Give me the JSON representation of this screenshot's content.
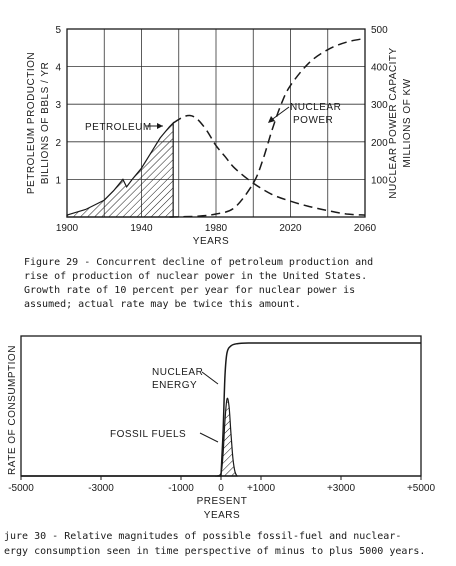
{
  "chart_data": [
    {
      "type": "area",
      "x_label": "YEARS",
      "y_label_left": [
        "PETROLEUM PRODUCTION",
        "BILLIONS OF BBLS / YR"
      ],
      "y_label_right": [
        "NUCLEAR POWER CAPACITY",
        "MILLIONS OF KW"
      ],
      "x_ticks": [
        "1900",
        "1940",
        "1980",
        "2020",
        "2060"
      ],
      "y_left_ticks": [
        "1",
        "2",
        "3",
        "4",
        "5"
      ],
      "y_right_ticks": [
        "100",
        "200",
        "300",
        "400",
        "500"
      ],
      "xlim": [
        1900,
        2060
      ],
      "ylim_left": [
        0,
        5
      ],
      "ylim_right": [
        0,
        500
      ],
      "grid": true,
      "series": [
        {
          "name": "PETROLEUM",
          "style": "hatched-area-then-dashed",
          "x": [
            1900,
            1910,
            1920,
            1925,
            1930,
            1932,
            1935,
            1940,
            1945,
            1950,
            1955,
            1957,
            1962,
            1966,
            1970,
            1975,
            1980,
            1985,
            1990,
            2000,
            2010,
            2020,
            2030,
            2040,
            2050,
            2060
          ],
          "y": [
            0.05,
            0.2,
            0.45,
            0.7,
            1.0,
            0.8,
            1.0,
            1.3,
            1.7,
            2.1,
            2.4,
            2.5,
            2.65,
            2.7,
            2.6,
            2.3,
            1.9,
            1.6,
            1.3,
            0.9,
            0.6,
            0.42,
            0.28,
            0.17,
            0.08,
            0.05
          ]
        },
        {
          "name": "NUCLEAR POWER",
          "style": "dashed",
          "x": [
            1955,
            1970,
            1980,
            1990,
            2000,
            2005,
            2010,
            2015,
            2020,
            2030,
            2040,
            2050,
            2060
          ],
          "y": [
            0,
            2,
            8,
            25,
            90,
            150,
            230,
            300,
            350,
            410,
            445,
            465,
            475
          ]
        }
      ],
      "annotations": [
        "PETROLEUM",
        "NUCLEAR",
        "POWER"
      ],
      "caption": [
        "Figure 29 - Concurrent decline of petroleum production and",
        "rise of production of nuclear power in the United States.",
        "Growth rate of 10 percent per year for nuclear power is",
        "assumed; actual rate may be twice this amount."
      ]
    },
    {
      "type": "line",
      "x_label": [
        "PRESENT",
        "YEARS"
      ],
      "y_label": "RATE OF CONSUMPTION",
      "x_ticks": [
        "-5000",
        "-3000",
        "-1000",
        "0",
        "+1000",
        "+3000",
        "+5000"
      ],
      "xlim": [
        -5000,
        5000
      ],
      "series": [
        {
          "name": "NUCLEAR ENERGY",
          "style": "solid",
          "x": [
            -5000,
            -1000,
            0,
            50,
            100,
            150,
            250,
            400,
            700,
            1000,
            3000,
            5000
          ],
          "y": [
            0,
            0,
            0,
            0.3,
            0.72,
            0.88,
            0.93,
            0.945,
            0.95,
            0.95,
            0.95,
            0.95
          ]
        },
        {
          "name": "FOSSIL FUELS",
          "style": "hatched-area",
          "x": [
            -5000,
            -100,
            0,
            50,
            100,
            150,
            200,
            250,
            300,
            350,
            400,
            5000
          ],
          "y": [
            0,
            0,
            0.02,
            0.15,
            0.4,
            0.55,
            0.5,
            0.3,
            0.12,
            0.03,
            0,
            0
          ]
        }
      ],
      "annotations": [
        "NUCLEAR",
        "ENERGY",
        "FOSSIL FUELS"
      ],
      "caption": [
        "jure 30 - Relative magnitudes of possible fossil-fuel and nuclear-",
        "ergy consumption seen in time perspective of minus to plus 5000 years."
      ]
    }
  ]
}
